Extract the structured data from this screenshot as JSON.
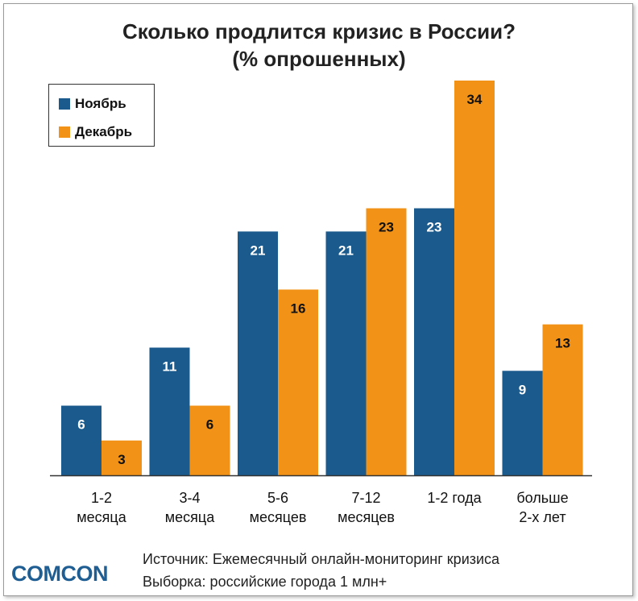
{
  "chart_data": {
    "type": "bar",
    "title_line1": "Сколько продлится кризис в России?",
    "title_line2": "(% опрошенных)",
    "categories": [
      [
        "1-2",
        "месяца"
      ],
      [
        "3-4",
        "месяца"
      ],
      [
        "5-6",
        "месяцев"
      ],
      [
        "7-12",
        "месяцев"
      ],
      [
        "1-2 года",
        ""
      ],
      [
        "больше",
        "2-х лет"
      ]
    ],
    "series": [
      {
        "name": "Ноябрь",
        "color": "#1a5a8c",
        "label_color": "#ffffff",
        "values": [
          6,
          11,
          21,
          21,
          23,
          9
        ]
      },
      {
        "name": "Декабрь",
        "color": "#f29217",
        "label_color": "#111111",
        "values": [
          3,
          6,
          16,
          23,
          34,
          13
        ]
      }
    ],
    "ylim": [
      0,
      34
    ],
    "legend_position": "top-left",
    "grid": false
  },
  "source": {
    "line1": "Источник: Ежемесячный онлайн-мониторинг кризиса",
    "line2": "Выборка: российские города 1 млн+"
  },
  "logo_text": "COMCON"
}
